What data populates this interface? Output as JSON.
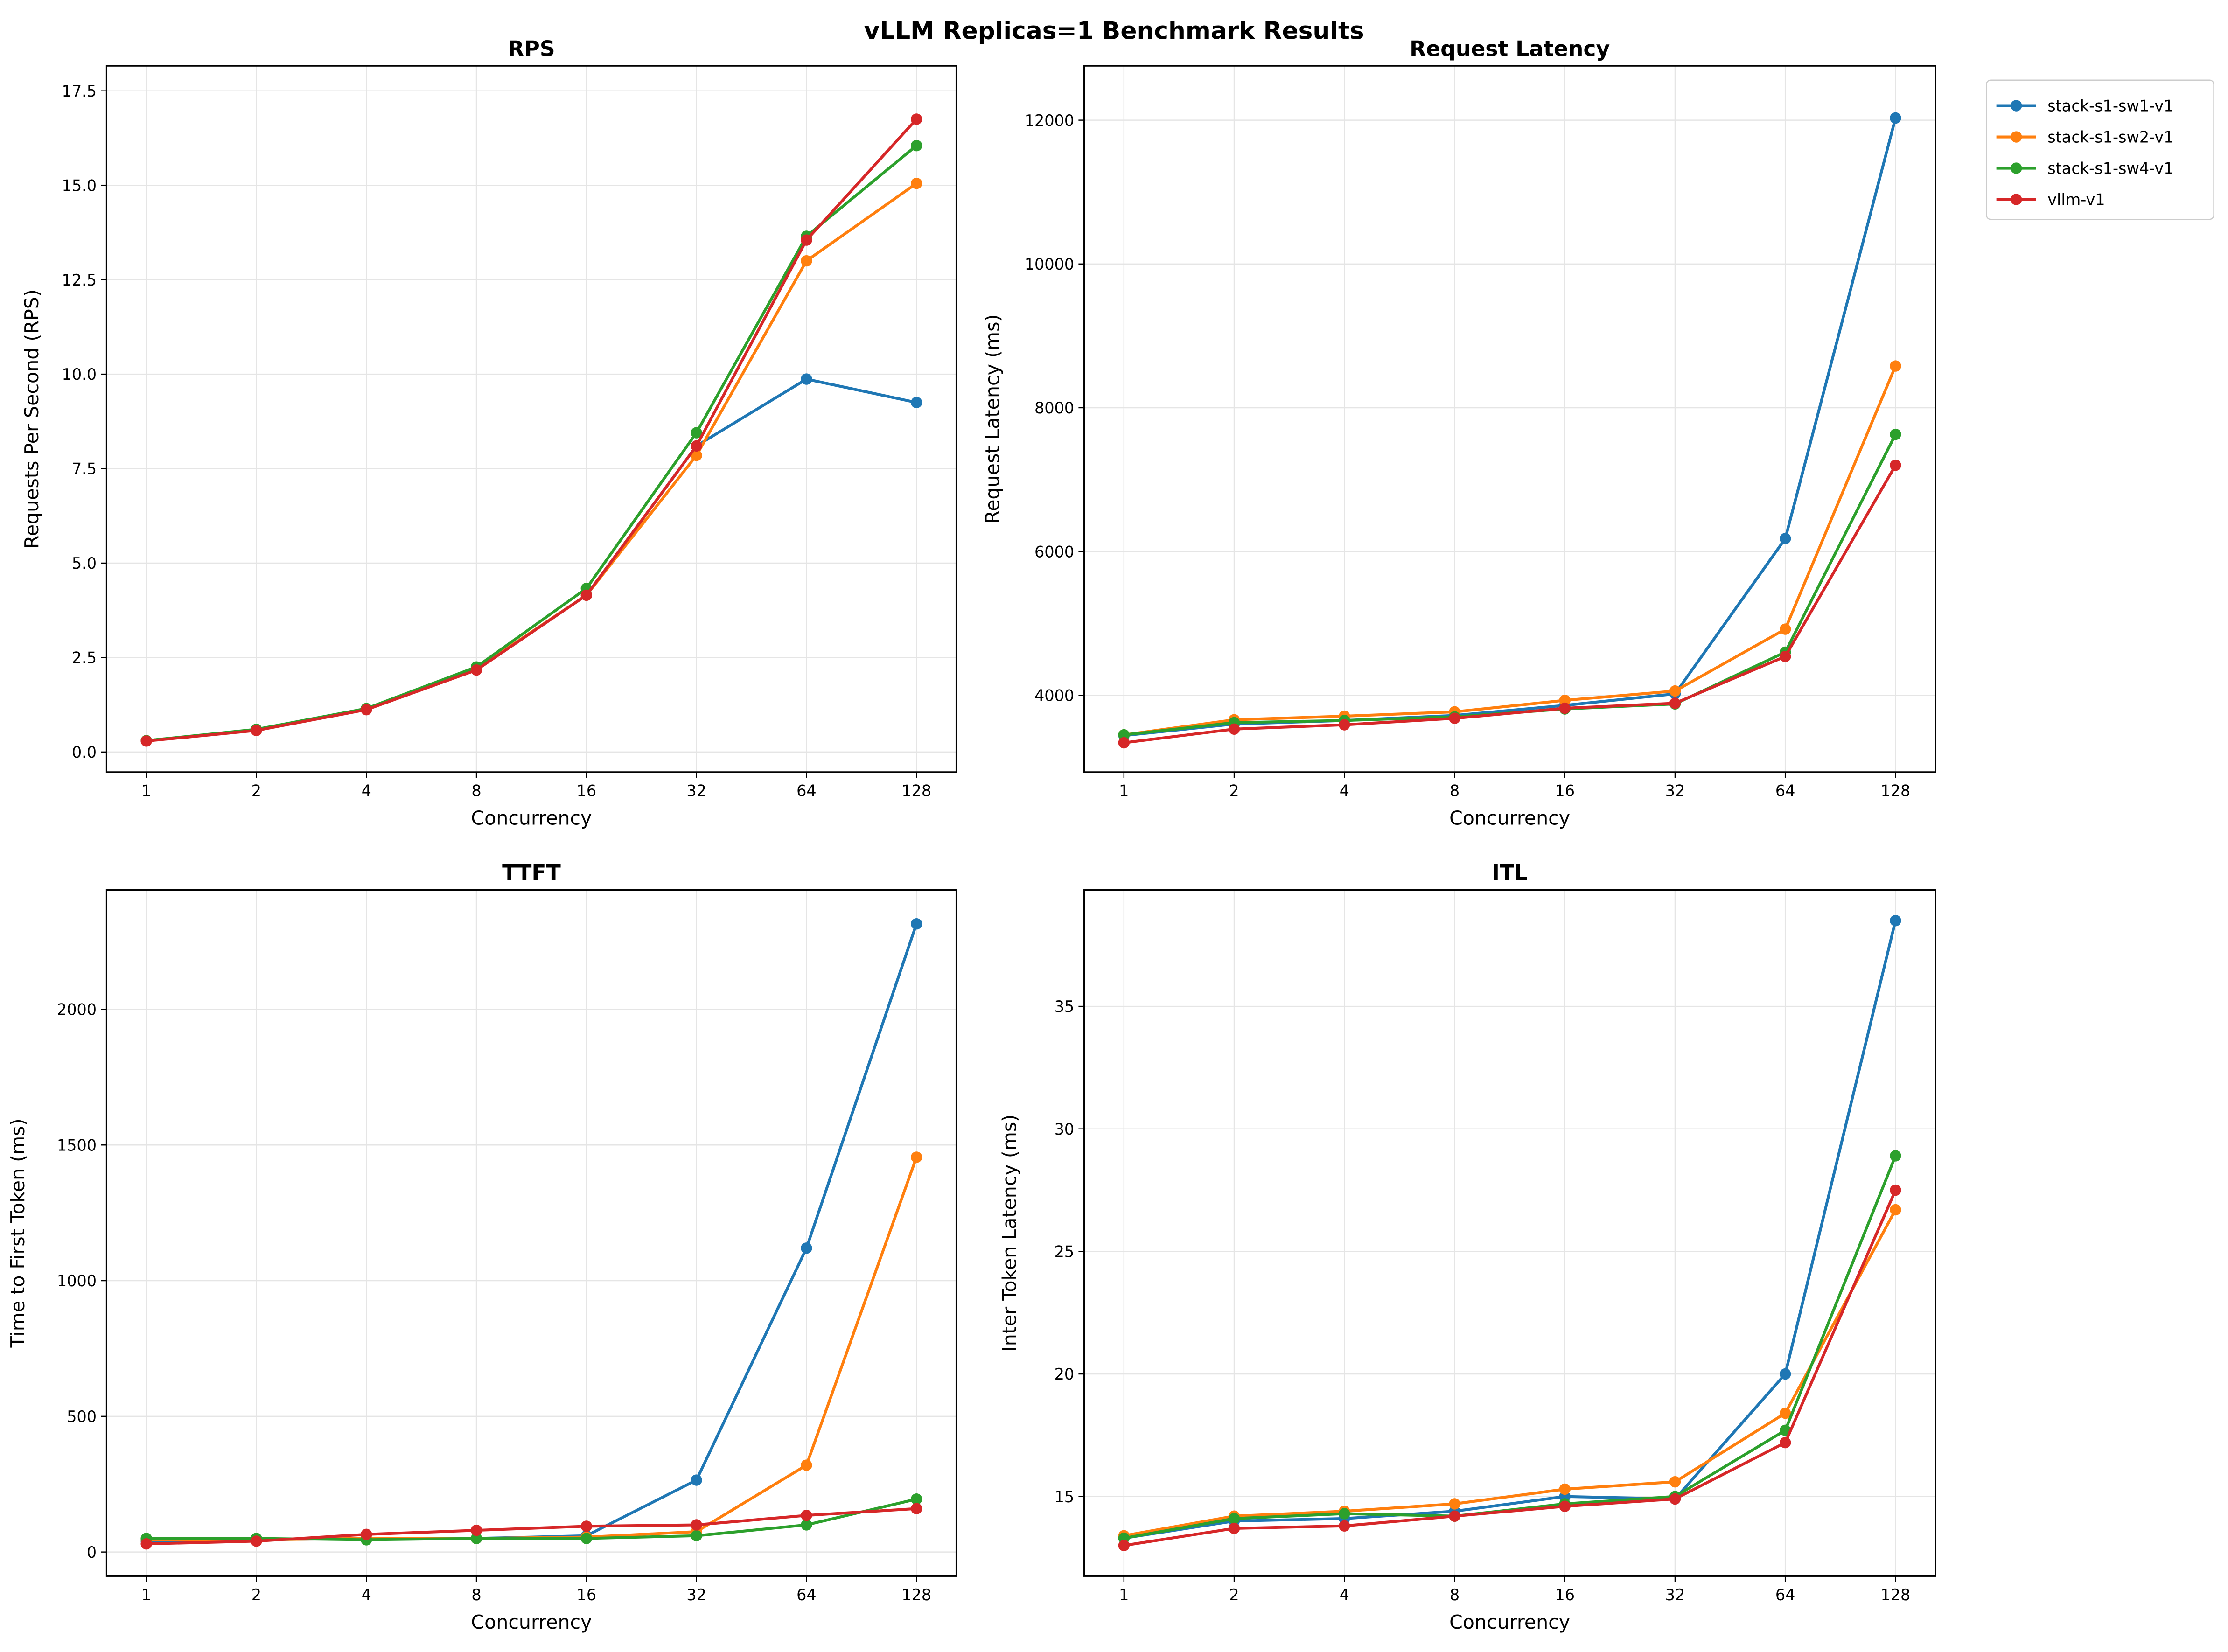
{
  "suptitle": "vLLM Replicas=1 Benchmark Results",
  "legend": {
    "placement": "outside-right-top",
    "entries": [
      "stack-s1-sw1-v1",
      "stack-s1-sw2-v1",
      "stack-s1-sw4-v1",
      "vllm-v1"
    ]
  },
  "colors": {
    "stack-s1-sw1-v1": "#1f77b4",
    "stack-s1-sw2-v1": "#ff7f0e",
    "stack-s1-sw4-v1": "#2ca02c",
    "vllm-v1": "#d62728"
  },
  "chart_data": [
    {
      "type": "line",
      "title": "RPS",
      "xlabel": "Concurrency",
      "ylabel": "Requests Per Second (RPS)",
      "categories": [
        "1",
        "2",
        "4",
        "8",
        "16",
        "32",
        "64",
        "128"
      ],
      "ylim": [
        -0.53,
        18.16
      ],
      "yticks": [
        "0.0",
        "2.5",
        "5.0",
        "7.5",
        "10.0",
        "12.5",
        "15.0",
        "17.5"
      ],
      "ytick_values": [
        0,
        2.5,
        5,
        7.5,
        10,
        12.5,
        15,
        17.5
      ],
      "grid": true,
      "series": [
        {
          "name": "stack-s1-sw1-v1",
          "values": [
            0.3,
            0.58,
            1.13,
            2.2,
            4.15,
            8.1,
            9.87,
            9.25
          ]
        },
        {
          "name": "stack-s1-sw2-v1",
          "values": [
            0.3,
            0.58,
            1.13,
            2.2,
            4.15,
            7.85,
            13.0,
            15.05
          ]
        },
        {
          "name": "stack-s1-sw4-v1",
          "values": [
            0.3,
            0.6,
            1.15,
            2.25,
            4.33,
            8.45,
            13.65,
            16.05
          ]
        },
        {
          "name": "vllm-v1",
          "values": [
            0.29,
            0.57,
            1.12,
            2.17,
            4.15,
            8.1,
            13.55,
            16.75
          ]
        }
      ]
    },
    {
      "type": "line",
      "title": "Request Latency",
      "xlabel": "Concurrency",
      "ylabel": "Request Latency (ms)",
      "categories": [
        "1",
        "2",
        "4",
        "8",
        "16",
        "32",
        "64",
        "128"
      ],
      "ylim": [
        2933,
        12755
      ],
      "yticks": [
        "4000",
        "6000",
        "8000",
        "10000",
        "12000"
      ],
      "ytick_values": [
        4000,
        6000,
        8000,
        10000,
        12000
      ],
      "grid": true,
      "series": [
        {
          "name": "stack-s1-sw1-v1",
          "values": [
            3440,
            3600,
            3650,
            3720,
            3860,
            4020,
            6180,
            12030
          ]
        },
        {
          "name": "stack-s1-sw2-v1",
          "values": [
            3450,
            3660,
            3710,
            3770,
            3930,
            4060,
            4920,
            8580
          ]
        },
        {
          "name": "stack-s1-sw4-v1",
          "values": [
            3450,
            3620,
            3650,
            3700,
            3810,
            3880,
            4600,
            7630
          ]
        },
        {
          "name": "vllm-v1",
          "values": [
            3340,
            3530,
            3590,
            3680,
            3820,
            3890,
            4540,
            7200
          ]
        }
      ]
    },
    {
      "type": "line",
      "title": "TTFT",
      "xlabel": "Concurrency",
      "ylabel": "Time to First Token (ms)",
      "categories": [
        "1",
        "2",
        "4",
        "8",
        "16",
        "32",
        "64",
        "128"
      ],
      "ylim": [
        -89,
        2440
      ],
      "yticks": [
        "0",
        "500",
        "1000",
        "1500",
        "2000"
      ],
      "ytick_values": [
        0,
        500,
        1000,
        1500,
        2000
      ],
      "grid": true,
      "series": [
        {
          "name": "stack-s1-sw1-v1",
          "values": [
            40,
            45,
            50,
            50,
            60,
            265,
            1120,
            2315
          ]
        },
        {
          "name": "stack-s1-sw2-v1",
          "values": [
            45,
            45,
            50,
            50,
            55,
            75,
            320,
            1455
          ]
        },
        {
          "name": "stack-s1-sw4-v1",
          "values": [
            50,
            50,
            45,
            50,
            50,
            60,
            100,
            195
          ]
        },
        {
          "name": "vllm-v1",
          "values": [
            30,
            40,
            65,
            80,
            95,
            100,
            135,
            160
          ]
        }
      ]
    },
    {
      "type": "line",
      "title": "ITL",
      "xlabel": "Concurrency",
      "ylabel": "Inter Token Latency (ms)",
      "categories": [
        "1",
        "2",
        "4",
        "8",
        "16",
        "32",
        "64",
        "128"
      ],
      "ylim": [
        11.75,
        39.75
      ],
      "yticks": [
        "15",
        "20",
        "25",
        "30",
        "35"
      ],
      "ytick_values": [
        15,
        20,
        25,
        30,
        35
      ],
      "grid": true,
      "series": [
        {
          "name": "stack-s1-sw1-v1",
          "values": [
            13.3,
            14.0,
            14.1,
            14.4,
            15.0,
            14.9,
            20.0,
            38.5
          ]
        },
        {
          "name": "stack-s1-sw2-v1",
          "values": [
            13.4,
            14.2,
            14.4,
            14.7,
            15.3,
            15.6,
            18.4,
            26.7
          ]
        },
        {
          "name": "stack-s1-sw4-v1",
          "values": [
            13.3,
            14.1,
            14.3,
            14.2,
            14.7,
            15.0,
            17.7,
            28.9
          ]
        },
        {
          "name": "vllm-v1",
          "values": [
            13.0,
            13.7,
            13.8,
            14.2,
            14.6,
            14.9,
            17.2,
            27.5
          ]
        }
      ]
    }
  ]
}
